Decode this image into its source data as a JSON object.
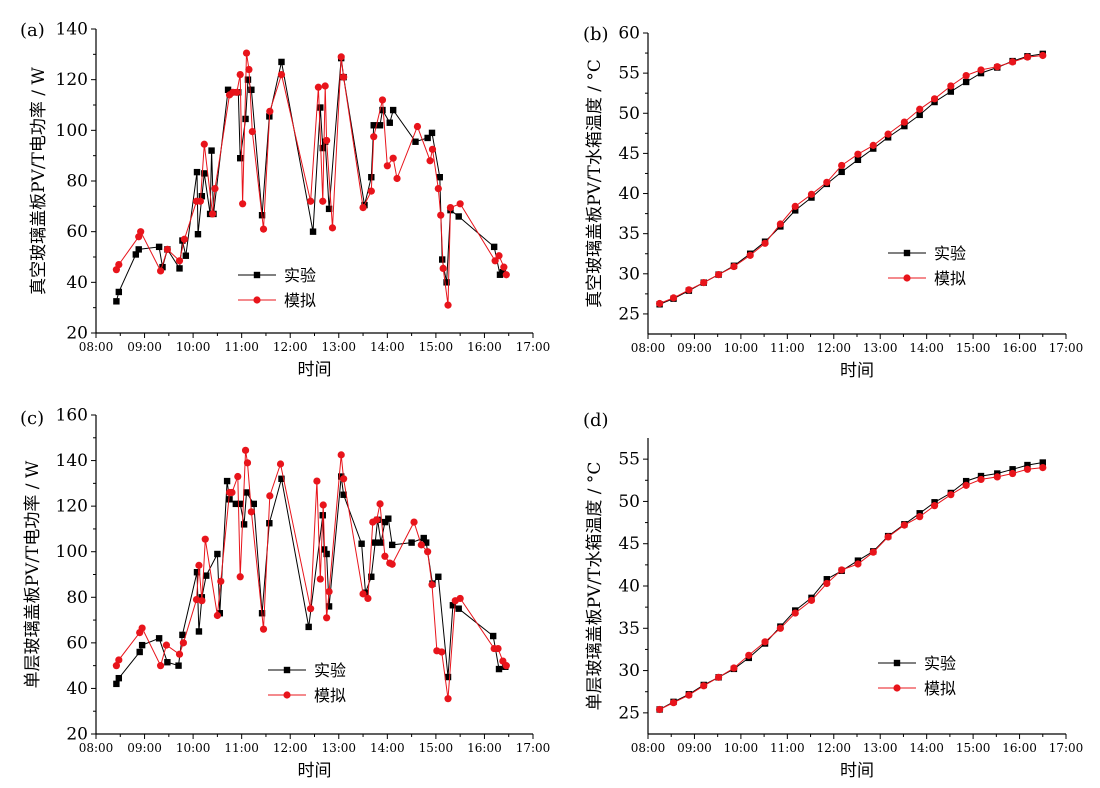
{
  "colors": {
    "exp": "#000000",
    "sim": "#e8141b"
  },
  "chart_data": [
    {
      "panel_label": "(a)",
      "type": "line",
      "title": "",
      "xlabel": "时间",
      "ylabel": "真空玻璃盖板PV/T电功率 / W",
      "xticks": [
        "08:00",
        "09:00",
        "10:00",
        "11:00",
        "12:00",
        "13:00",
        "14:00",
        "15:00",
        "16:00",
        "17:00"
      ],
      "xlim": [
        8,
        17
      ],
      "ylim": [
        20,
        140
      ],
      "yticks": [
        20,
        40,
        60,
        80,
        100,
        120,
        140
      ],
      "legend": {
        "placement": "center-left"
      },
      "series": [
        {
          "name": "实验",
          "marker": "square",
          "color": "#000000",
          "x": [
            8.42,
            8.47,
            8.82,
            8.88,
            9.3,
            9.37,
            9.47,
            9.72,
            9.78,
            9.85,
            10.08,
            10.1,
            10.18,
            10.23,
            10.35,
            10.38,
            10.42,
            10.72,
            10.77,
            10.82,
            10.93,
            10.97,
            11.08,
            11.13,
            11.2,
            11.42,
            11.57,
            11.82,
            12.47,
            12.62,
            12.67,
            12.72,
            12.8,
            13.05,
            13.1,
            13.53,
            13.67,
            13.72,
            13.85,
            13.9,
            14.05,
            14.12,
            14.58,
            14.83,
            14.92,
            15.08,
            15.13,
            15.22,
            15.3,
            15.47,
            16.2,
            16.32,
            16.38
          ],
          "y": [
            32.5,
            36.2,
            51,
            53,
            54,
            46,
            53,
            45.5,
            56.5,
            50.5,
            83.5,
            59,
            74,
            83,
            67,
            92,
            67,
            116,
            115,
            115,
            115,
            89,
            104.5,
            120,
            116,
            66.5,
            105.5,
            127,
            60,
            109,
            93,
            95.5,
            69,
            128.5,
            121,
            70.5,
            81.5,
            102,
            102,
            108,
            103,
            108,
            95.5,
            97,
            99,
            81.5,
            49,
            40,
            68.5,
            66,
            54,
            43,
            44
          ]
        },
        {
          "name": "模拟",
          "marker": "circle",
          "color": "#e8141b",
          "x": [
            8.42,
            8.47,
            8.88,
            8.92,
            9.33,
            9.47,
            9.72,
            9.82,
            10.07,
            10.15,
            10.23,
            10.4,
            10.45,
            10.75,
            10.82,
            10.9,
            10.97,
            11.02,
            11.1,
            11.15,
            11.22,
            11.45,
            11.58,
            11.82,
            12.42,
            12.58,
            12.67,
            12.72,
            12.75,
            12.87,
            13.05,
            13.1,
            13.5,
            13.67,
            13.72,
            13.9,
            14.0,
            14.12,
            14.2,
            14.62,
            14.88,
            14.93,
            15.05,
            15.1,
            15.15,
            15.25,
            15.3,
            15.5,
            16.22,
            16.3,
            16.4,
            16.45
          ],
          "y": [
            45,
            47,
            58,
            60,
            44.5,
            53,
            48.5,
            57,
            72,
            72,
            94.5,
            67,
            77,
            114,
            115,
            115,
            122,
            71,
            130.5,
            124,
            99.5,
            61,
            107.5,
            122,
            72,
            117,
            72,
            117.5,
            96,
            61.5,
            129,
            121,
            69.5,
            76,
            97.5,
            112,
            86,
            89,
            81,
            101.5,
            88,
            92.5,
            77,
            66.5,
            45.5,
            31,
            69.5,
            71,
            48.5,
            50.5,
            46,
            43
          ]
        }
      ]
    },
    {
      "panel_label": "(b)",
      "type": "line",
      "title": "",
      "xlabel": "时间",
      "ylabel": "真空玻璃盖板PV/T水箱温度 / °C",
      "xticks": [
        "08:00",
        "09:00",
        "10:00",
        "11:00",
        "12:00",
        "13:00",
        "14:00",
        "15:00",
        "16:00",
        "17:00"
      ],
      "xlim": [
        8,
        17
      ],
      "ylim": [
        22.5,
        60
      ],
      "yticks": [
        25,
        30,
        35,
        40,
        45,
        50,
        55,
        60
      ],
      "legend": {
        "placement": "center-right"
      },
      "series": [
        {
          "name": "实验",
          "marker": "square",
          "color": "#000000",
          "x": [
            8.25,
            8.55,
            8.88,
            9.2,
            9.52,
            9.85,
            10.2,
            10.52,
            10.85,
            11.17,
            11.52,
            11.85,
            12.17,
            12.52,
            12.85,
            13.17,
            13.52,
            13.85,
            14.17,
            14.52,
            14.85,
            15.17,
            15.52,
            15.85,
            16.17,
            16.5
          ],
          "y": [
            26.2,
            26.9,
            27.9,
            28.9,
            29.9,
            31.0,
            32.5,
            34.0,
            35.9,
            37.9,
            39.5,
            41.2,
            42.7,
            44.2,
            45.6,
            47.0,
            48.4,
            49.8,
            51.4,
            52.7,
            53.9,
            55.0,
            55.7,
            56.5,
            57.1,
            57.4
          ]
        },
        {
          "name": "模拟",
          "marker": "circle",
          "color": "#e8141b",
          "x": [
            8.25,
            8.55,
            8.88,
            9.2,
            9.52,
            9.85,
            10.2,
            10.52,
            10.85,
            11.17,
            11.52,
            11.85,
            12.17,
            12.52,
            12.85,
            13.17,
            13.52,
            13.85,
            14.17,
            14.52,
            14.85,
            15.17,
            15.52,
            15.85,
            16.17,
            16.5
          ],
          "y": [
            26.3,
            27.0,
            28.0,
            28.9,
            29.9,
            30.9,
            32.3,
            33.8,
            36.2,
            38.4,
            39.9,
            41.4,
            43.5,
            44.9,
            46.0,
            47.4,
            48.9,
            50.5,
            51.8,
            53.4,
            54.7,
            55.4,
            55.8,
            56.4,
            57.0,
            57.2
          ]
        }
      ]
    },
    {
      "panel_label": "(c)",
      "type": "line",
      "title": "",
      "xlabel": "时间",
      "ylabel": "单层玻璃盖板PV/T电功率 / W",
      "xticks": [
        "08:00",
        "09:00",
        "10:00",
        "11:00",
        "12:00",
        "13:00",
        "14:00",
        "15:00",
        "16:00",
        "17:00"
      ],
      "xlim": [
        8,
        17
      ],
      "ylim": [
        20,
        160
      ],
      "yticks": [
        20,
        40,
        60,
        80,
        100,
        120,
        140,
        160
      ],
      "legend": {
        "placement": "center-left"
      },
      "series": [
        {
          "name": "实验",
          "marker": "square",
          "color": "#000000",
          "x": [
            8.42,
            8.47,
            8.9,
            8.95,
            9.3,
            9.47,
            9.7,
            9.78,
            10.08,
            10.12,
            10.18,
            10.27,
            10.5,
            10.55,
            10.7,
            10.75,
            10.88,
            10.97,
            11.05,
            11.1,
            11.25,
            11.42,
            11.57,
            11.82,
            12.38,
            12.67,
            12.7,
            12.75,
            12.8,
            13.05,
            13.1,
            13.47,
            13.55,
            13.67,
            13.75,
            13.8,
            13.87,
            13.95,
            14.02,
            14.1,
            14.5,
            14.75,
            14.8,
            14.93,
            15.05,
            15.25,
            15.35,
            15.47,
            16.18,
            16.3,
            16.43
          ],
          "y": [
            42,
            44.5,
            56,
            59,
            62,
            51.5,
            50,
            63.5,
            91,
            65,
            80,
            89.5,
            99,
            73,
            131,
            123,
            121,
            121,
            112,
            126,
            121,
            73,
            112.5,
            132,
            67,
            116,
            101,
            99,
            76,
            133,
            125,
            103.5,
            82,
            89,
            104,
            114,
            104,
            113,
            114.5,
            103,
            104,
            106,
            104,
            86,
            89,
            45,
            76.5,
            75,
            63,
            48.5,
            49.5
          ]
        },
        {
          "name": "模拟",
          "marker": "circle",
          "color": "#e8141b",
          "x": [
            8.42,
            8.47,
            8.9,
            8.95,
            9.33,
            9.45,
            9.72,
            9.8,
            10.07,
            10.12,
            10.18,
            10.25,
            10.5,
            10.57,
            10.75,
            10.8,
            10.92,
            10.97,
            11.08,
            11.12,
            11.2,
            11.45,
            11.58,
            11.8,
            12.42,
            12.55,
            12.62,
            12.68,
            12.75,
            12.8,
            13.05,
            13.1,
            13.5,
            13.6,
            13.7,
            13.78,
            13.85,
            13.95,
            14.05,
            14.1,
            14.55,
            14.7,
            14.83,
            14.92,
            15.02,
            15.12,
            15.25,
            15.4,
            15.5,
            16.2,
            16.28,
            16.38,
            16.45
          ],
          "y": [
            50,
            52.5,
            64.5,
            66.5,
            50,
            59,
            55,
            60,
            79,
            94,
            78.5,
            105.5,
            72,
            87,
            126,
            126,
            133,
            89,
            144.5,
            139,
            117.5,
            66,
            124.5,
            138.5,
            75,
            131,
            88,
            120.5,
            71,
            82.5,
            142.5,
            132,
            81.5,
            79.5,
            113,
            114,
            121,
            98,
            95,
            94.5,
            113,
            103,
            100,
            85.5,
            56.5,
            56,
            35.5,
            78.5,
            79.5,
            57.5,
            57.5,
            52,
            50
          ]
        }
      ]
    },
    {
      "panel_label": "(d)",
      "type": "line",
      "title": "",
      "xlabel": "时间",
      "ylabel": "单层玻璃盖板PV/T水箱温度 / °C",
      "xticks": [
        "08:00",
        "09:00",
        "10:00",
        "11:00",
        "12:00",
        "13:00",
        "14:00",
        "15:00",
        "16:00",
        "17:00"
      ],
      "xlim": [
        8,
        17
      ],
      "ylim": [
        22.5,
        57.5
      ],
      "yticks": [
        25,
        30,
        35,
        40,
        45,
        50,
        55
      ],
      "legend": {
        "placement": "center-right"
      },
      "series": [
        {
          "name": "实验",
          "marker": "square",
          "color": "#000000",
          "x": [
            8.25,
            8.55,
            8.88,
            9.2,
            9.52,
            9.85,
            10.17,
            10.52,
            10.85,
            11.17,
            11.52,
            11.85,
            12.17,
            12.52,
            12.85,
            13.17,
            13.52,
            13.85,
            14.17,
            14.52,
            14.85,
            15.17,
            15.52,
            15.85,
            16.17,
            16.5
          ],
          "y": [
            25.4,
            26.3,
            27.2,
            28.3,
            29.2,
            30.2,
            31.5,
            33.2,
            35.2,
            37.1,
            38.6,
            40.8,
            41.8,
            43.0,
            44.1,
            45.9,
            47.3,
            48.6,
            49.9,
            51.0,
            52.4,
            53.0,
            53.3,
            53.8,
            54.3,
            54.6
          ]
        },
        {
          "name": "模拟",
          "marker": "circle",
          "color": "#e8141b",
          "x": [
            8.25,
            8.55,
            8.88,
            9.2,
            9.52,
            9.85,
            10.17,
            10.52,
            10.85,
            11.17,
            11.52,
            11.85,
            12.17,
            12.52,
            12.85,
            13.17,
            13.52,
            13.85,
            14.17,
            14.52,
            14.85,
            15.17,
            15.52,
            15.85,
            16.17,
            16.5
          ],
          "y": [
            25.4,
            26.2,
            27.1,
            28.2,
            29.2,
            30.3,
            31.8,
            33.4,
            35.0,
            36.8,
            38.3,
            40.3,
            41.9,
            42.6,
            44.0,
            45.8,
            47.2,
            48.2,
            49.5,
            50.8,
            51.9,
            52.6,
            52.9,
            53.3,
            53.8,
            54.0
          ]
        }
      ]
    }
  ]
}
